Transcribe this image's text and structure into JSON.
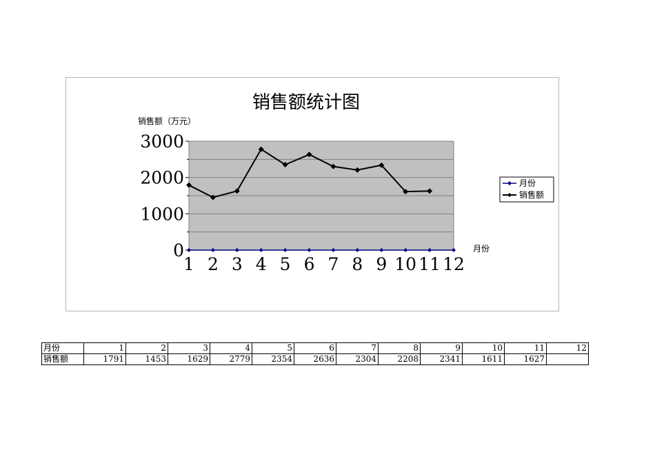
{
  "chart_data": {
    "type": "line",
    "title": "销售额统计图",
    "ylabel": "销售额（万元）",
    "xlabel": "月份",
    "categories": [
      "1",
      "2",
      "3",
      "4",
      "5",
      "6",
      "7",
      "8",
      "9",
      "10",
      "11",
      "12"
    ],
    "yticks": [
      "0",
      "1000",
      "2000",
      "3000"
    ],
    "ylim": [
      0,
      3000
    ],
    "grid": true,
    "legend": "right",
    "series": [
      {
        "name": "月份",
        "values": [
          0,
          0,
          0,
          0,
          0,
          0,
          0,
          0,
          0,
          0,
          0,
          0
        ],
        "color": "#000080"
      },
      {
        "name": "销售额",
        "values": [
          1791,
          1453,
          1629,
          2779,
          2354,
          2636,
          2304,
          2208,
          2341,
          1611,
          1627,
          null
        ],
        "color": "#000000"
      }
    ],
    "plot_background": "#c0c0c0"
  },
  "table": {
    "rows": [
      {
        "label": "月份",
        "cells": [
          "1",
          "2",
          "3",
          "4",
          "5",
          "6",
          "7",
          "8",
          "9",
          "10",
          "11",
          "12"
        ]
      },
      {
        "label": "销售额",
        "cells": [
          "1791",
          "1453",
          "1629",
          "2779",
          "2354",
          "2636",
          "2304",
          "2208",
          "2341",
          "1611",
          "1627",
          ""
        ]
      }
    ]
  }
}
